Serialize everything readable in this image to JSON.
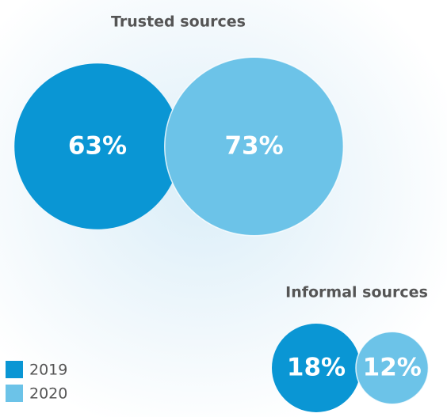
{
  "chart_data": {
    "type": "bubble",
    "categories": [
      "Trusted sources",
      "Informal sources"
    ],
    "series": [
      {
        "name": "2019",
        "color": "#0a96d4",
        "values": [
          63,
          18
        ],
        "value_labels": [
          "63%",
          "18%"
        ]
      },
      {
        "name": "2020",
        "color": "#6cc3e8",
        "values": [
          73,
          12
        ],
        "value_labels": [
          "73%",
          "12%"
        ]
      }
    ]
  }
}
